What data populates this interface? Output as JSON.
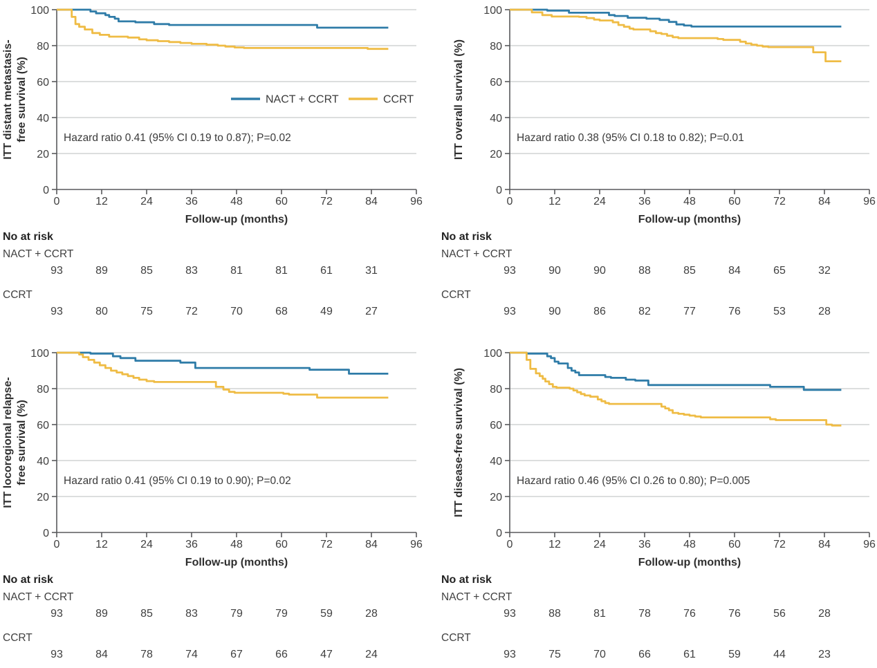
{
  "figure_type": "kaplan-meier-grid",
  "colors": {
    "nact_ccrt": "#2F7CA8",
    "ccrt": "#EFBC45",
    "grid_line": "#c8c9cb",
    "axis_line": "#58595b",
    "text": "#404040"
  },
  "legend": {
    "items": [
      "NACT + CCRT",
      "CCRT"
    ]
  },
  "chart_data": [
    {
      "type": "line",
      "subtype": "kaplan-meier-step",
      "title": "ITT distant metastasis-free survival (%)",
      "ylabel_lines": [
        "ITT distant metastasis-",
        "free survival (%)"
      ],
      "xlabel": "Follow-up (months)",
      "xlim": [
        0,
        96
      ],
      "ylim": [
        0,
        100
      ],
      "x_ticks": [
        0,
        12,
        24,
        36,
        48,
        60,
        72,
        84,
        96
      ],
      "y_ticks": [
        0,
        20,
        40,
        60,
        80,
        100
      ],
      "annotation": "Hazard ratio 0.41 (95% CI 0.19 to 0.87); P=0.02",
      "show_legend": true,
      "end_month": 88.5,
      "series": [
        {
          "name": "NACT + CCRT",
          "color_key": "nact_ccrt",
          "points": [
            [
              0,
              100
            ],
            [
              9,
              99
            ],
            [
              10.5,
              98
            ],
            [
              13,
              97
            ],
            [
              14,
              96
            ],
            [
              15.5,
              95
            ],
            [
              16.5,
              93.5
            ],
            [
              21,
              93
            ],
            [
              26,
              92
            ],
            [
              30,
              91.5
            ],
            [
              69.5,
              90
            ]
          ]
        },
        {
          "name": "CCRT",
          "color_key": "ccrt",
          "points": [
            [
              0,
              100
            ],
            [
              4,
              96
            ],
            [
              5,
              92
            ],
            [
              6,
              90.5
            ],
            [
              7.5,
              89
            ],
            [
              9.5,
              87
            ],
            [
              11.5,
              86
            ],
            [
              14,
              85
            ],
            [
              19,
              84.5
            ],
            [
              22,
              83.5
            ],
            [
              24,
              83
            ],
            [
              27,
              82.5
            ],
            [
              30,
              82
            ],
            [
              33,
              81.5
            ],
            [
              36,
              81
            ],
            [
              40,
              80.5
            ],
            [
              43,
              80
            ],
            [
              45,
              79.5
            ],
            [
              47.5,
              79
            ],
            [
              50,
              78.7
            ],
            [
              83,
              78.2
            ]
          ]
        }
      ],
      "risk_table": {
        "header": "No at risk",
        "tick_months": [
          0,
          12,
          24,
          36,
          48,
          60,
          72,
          84
        ],
        "rows": [
          {
            "label": "NACT + CCRT",
            "counts": [
              93,
              89,
              85,
              83,
              81,
              81,
              61,
              31
            ]
          },
          {
            "label": "CCRT",
            "counts": [
              93,
              80,
              75,
              72,
              70,
              68,
              49,
              27
            ]
          }
        ]
      }
    },
    {
      "type": "line",
      "subtype": "kaplan-meier-step",
      "title": "ITT overall survival (%)",
      "ylabel_lines": [
        "ITT overall survival (%)"
      ],
      "xlabel": "Follow-up (months)",
      "xlim": [
        0,
        96
      ],
      "ylim": [
        0,
        100
      ],
      "x_ticks": [
        0,
        12,
        24,
        36,
        48,
        60,
        72,
        84,
        96
      ],
      "y_ticks": [
        0,
        20,
        40,
        60,
        80,
        100
      ],
      "annotation": "Hazard ratio 0.38 (95% CI 0.18 to 0.82); P=0.01",
      "show_legend": false,
      "end_month": 88.5,
      "series": [
        {
          "name": "NACT + CCRT",
          "color_key": "nact_ccrt",
          "points": [
            [
              0,
              100
            ],
            [
              10,
              99.5
            ],
            [
              15.8,
              98.3
            ],
            [
              26.5,
              97
            ],
            [
              28,
              96.5
            ],
            [
              31.5,
              95.5
            ],
            [
              36.5,
              95
            ],
            [
              40,
              94.3
            ],
            [
              42.5,
              93.2
            ],
            [
              44.5,
              91.8
            ],
            [
              46.5,
              91.2
            ],
            [
              48.5,
              90.6
            ]
          ]
        },
        {
          "name": "CCRT",
          "color_key": "ccrt",
          "points": [
            [
              0,
              100
            ],
            [
              5.9,
              98.5
            ],
            [
              8.7,
              97
            ],
            [
              11.2,
              96.2
            ],
            [
              18.5,
              96
            ],
            [
              20.5,
              95.3
            ],
            [
              22.5,
              94.5
            ],
            [
              24,
              94
            ],
            [
              27.5,
              93
            ],
            [
              29,
              91.5
            ],
            [
              30.5,
              90.5
            ],
            [
              32,
              89.5
            ],
            [
              33,
              89
            ],
            [
              37.5,
              88
            ],
            [
              39,
              87
            ],
            [
              40.5,
              86.5
            ],
            [
              42,
              85.5
            ],
            [
              43.5,
              84.7
            ],
            [
              45,
              84.2
            ],
            [
              55.5,
              83.7
            ],
            [
              57,
              83.2
            ],
            [
              61.5,
              82.2
            ],
            [
              63,
              81.2
            ],
            [
              64.5,
              80.5
            ],
            [
              66,
              80
            ],
            [
              67.5,
              79.5
            ],
            [
              69,
              79.2
            ],
            [
              81,
              76.3
            ],
            [
              84.3,
              71.3
            ]
          ]
        }
      ],
      "risk_table": {
        "header": "No at risk",
        "tick_months": [
          0,
          12,
          24,
          36,
          48,
          60,
          72,
          84
        ],
        "rows": [
          {
            "label": "NACT + CCRT",
            "counts": [
              93,
              90,
              90,
              88,
              85,
              84,
              65,
              32
            ]
          },
          {
            "label": "CCRT",
            "counts": [
              93,
              90,
              86,
              82,
              77,
              76,
              53,
              28
            ]
          }
        ]
      }
    },
    {
      "type": "line",
      "subtype": "kaplan-meier-step",
      "title": "ITT locoregional relapse-free survival (%)",
      "ylabel_lines": [
        "ITT locoregional relapse-",
        "free survival (%)"
      ],
      "xlabel": "Follow-up (months)",
      "xlim": [
        0,
        96
      ],
      "ylim": [
        0,
        100
      ],
      "x_ticks": [
        0,
        12,
        24,
        36,
        48,
        60,
        72,
        84,
        96
      ],
      "y_ticks": [
        0,
        20,
        40,
        60,
        80,
        100
      ],
      "annotation": "Hazard ratio 0.41 (95% CI 0.19 to 0.90); P=0.02",
      "show_legend": false,
      "end_month": 88.5,
      "series": [
        {
          "name": "NACT + CCRT",
          "color_key": "nact_ccrt",
          "points": [
            [
              0,
              100
            ],
            [
              9,
              99.5
            ],
            [
              15,
              98
            ],
            [
              17,
              97
            ],
            [
              21,
              95.5
            ],
            [
              33,
              94.5
            ],
            [
              37,
              91.5
            ],
            [
              67.5,
              90.5
            ],
            [
              78,
              88.3
            ]
          ]
        },
        {
          "name": "CCRT",
          "color_key": "ccrt",
          "points": [
            [
              0,
              100
            ],
            [
              6,
              99
            ],
            [
              7,
              97.5
            ],
            [
              8.5,
              96
            ],
            [
              10,
              94.5
            ],
            [
              11.5,
              93
            ],
            [
              13,
              91.5
            ],
            [
              14.5,
              90
            ],
            [
              16,
              89
            ],
            [
              17.5,
              88
            ],
            [
              19,
              87
            ],
            [
              20.5,
              86
            ],
            [
              22,
              85
            ],
            [
              24,
              84.2
            ],
            [
              26,
              83.7
            ],
            [
              42.5,
              81
            ],
            [
              44.5,
              79.5
            ],
            [
              46,
              78.2
            ],
            [
              47.5,
              77.7
            ],
            [
              60.5,
              77.2
            ],
            [
              62,
              76.7
            ],
            [
              69.5,
              75
            ]
          ]
        }
      ],
      "risk_table": {
        "header": "No at risk",
        "tick_months": [
          0,
          12,
          24,
          36,
          48,
          60,
          72,
          84
        ],
        "rows": [
          {
            "label": "NACT + CCRT",
            "counts": [
              93,
              89,
              85,
              83,
              79,
              79,
              59,
              28
            ]
          },
          {
            "label": "CCRT",
            "counts": [
              93,
              84,
              78,
              74,
              67,
              66,
              47,
              24
            ]
          }
        ]
      }
    },
    {
      "type": "line",
      "subtype": "kaplan-meier-step",
      "title": "ITT disease-free survival (%)",
      "ylabel_lines": [
        "ITT disease-free survival (%)"
      ],
      "xlabel": "Follow-up (months)",
      "xlim": [
        0,
        96
      ],
      "ylim": [
        0,
        100
      ],
      "x_ticks": [
        0,
        12,
        24,
        36,
        48,
        60,
        72,
        84,
        96
      ],
      "y_ticks": [
        0,
        20,
        40,
        60,
        80,
        100
      ],
      "annotation": "Hazard ratio 0.46 (95% CI 0.26 to 0.80); P=0.005",
      "show_legend": false,
      "end_month": 88.5,
      "series": [
        {
          "name": "NACT + CCRT",
          "color_key": "nact_ccrt",
          "points": [
            [
              0,
              100
            ],
            [
              4.5,
              99.5
            ],
            [
              10,
              98
            ],
            [
              11,
              97
            ],
            [
              12,
              95
            ],
            [
              13,
              94
            ],
            [
              15.5,
              91.5
            ],
            [
              16.5,
              90
            ],
            [
              17.5,
              89
            ],
            [
              18.5,
              87.5
            ],
            [
              25.5,
              86.5
            ],
            [
              27,
              86
            ],
            [
              31,
              85
            ],
            [
              33.5,
              84.5
            ],
            [
              37,
              82
            ],
            [
              69.5,
              81
            ],
            [
              78.5,
              79.3
            ]
          ]
        },
        {
          "name": "CCRT",
          "color_key": "ccrt",
          "points": [
            [
              0,
              100
            ],
            [
              4.5,
              96
            ],
            [
              5.5,
              91
            ],
            [
              7,
              88.5
            ],
            [
              8,
              87
            ],
            [
              8.8,
              85.5
            ],
            [
              9.5,
              84
            ],
            [
              10.5,
              82.5
            ],
            [
              11.5,
              81
            ],
            [
              12.5,
              80.5
            ],
            [
              16,
              80
            ],
            [
              17,
              79
            ],
            [
              18,
              78
            ],
            [
              19,
              77
            ],
            [
              20,
              76.2
            ],
            [
              21.5,
              75.5
            ],
            [
              23.5,
              74
            ],
            [
              24.5,
              73
            ],
            [
              25.5,
              72
            ],
            [
              26.5,
              71.5
            ],
            [
              40.5,
              70
            ],
            [
              41.5,
              69
            ],
            [
              42.5,
              68
            ],
            [
              43.5,
              66.5
            ],
            [
              45,
              66
            ],
            [
              46.5,
              65.5
            ],
            [
              48,
              65
            ],
            [
              49.5,
              64.5
            ],
            [
              51,
              64
            ],
            [
              69.5,
              63
            ],
            [
              71,
              62.5
            ],
            [
              84.5,
              60
            ],
            [
              86,
              59.5
            ]
          ]
        }
      ],
      "risk_table": {
        "header": "No at risk",
        "tick_months": [
          0,
          12,
          24,
          36,
          48,
          60,
          72,
          84
        ],
        "rows": [
          {
            "label": "NACT + CCRT",
            "counts": [
              93,
              88,
              81,
              78,
              76,
              76,
              56,
              28
            ]
          },
          {
            "label": "CCRT",
            "counts": [
              93,
              75,
              70,
              66,
              61,
              59,
              44,
              23
            ]
          }
        ]
      }
    }
  ]
}
